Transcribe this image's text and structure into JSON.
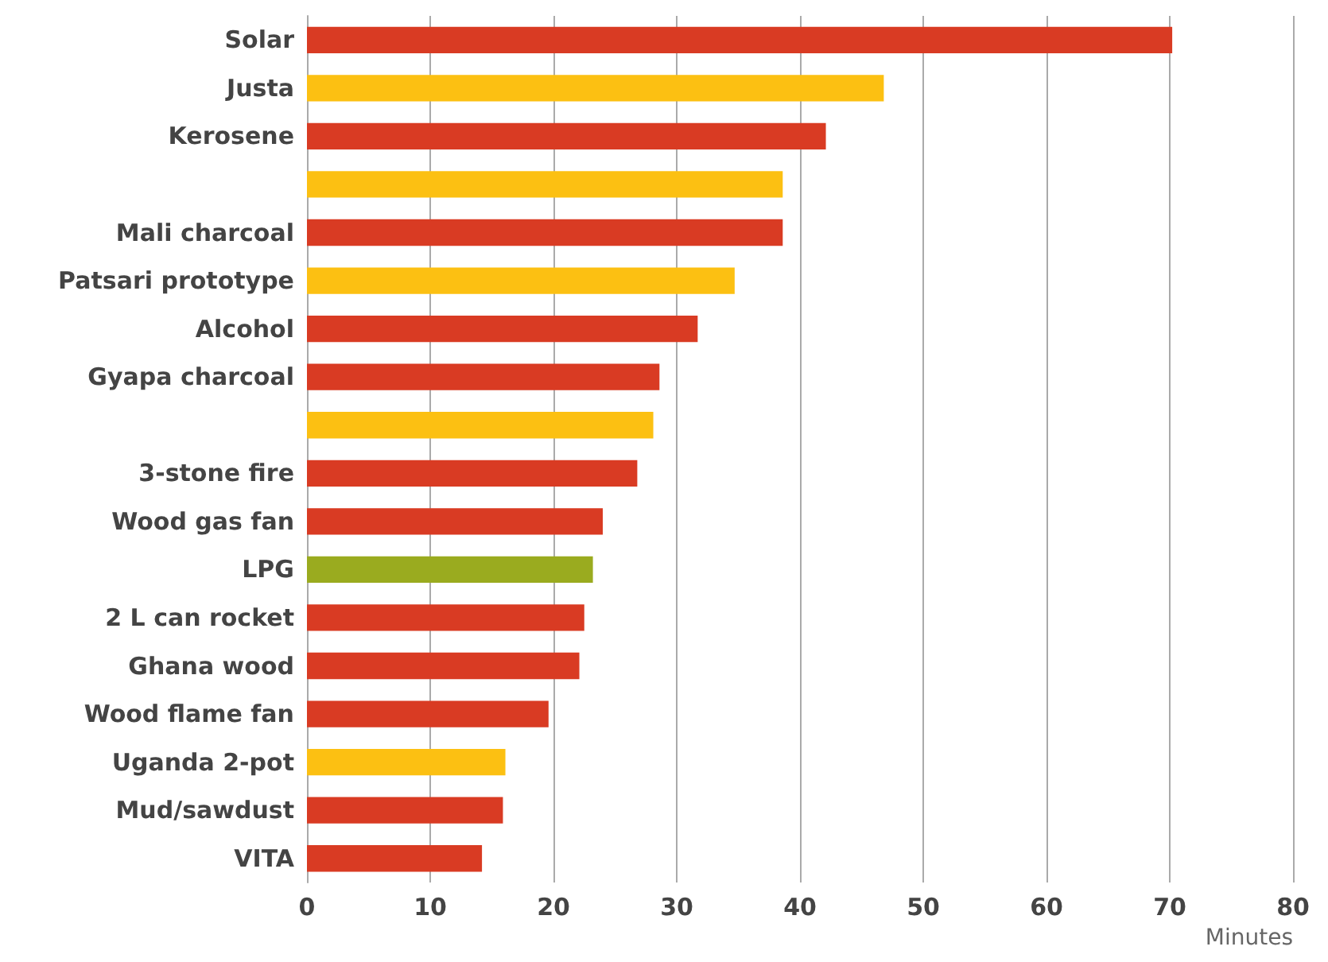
{
  "chart_data": {
    "type": "bar",
    "orientation": "horizontal",
    "xlabel": "Minutes",
    "categories": [
      "Solar",
      "Justa",
      "Kerosene",
      null,
      "Mali charcoal",
      "Patsari prototype",
      "Alcohol",
      "Gyapa charcoal",
      null,
      "3-stone fire",
      "Wood gas fan",
      "LPG",
      "2 L can rocket",
      "Ghana wood",
      "Wood flame fan",
      "Uganda 2-pot",
      "Mud/sawdust",
      "VITA"
    ],
    "values": [
      70.2,
      46.8,
      42.1,
      38.6,
      38.6,
      34.7,
      31.7,
      28.6,
      28.1,
      26.8,
      24.0,
      23.2,
      22.5,
      22.1,
      19.6,
      16.1,
      15.9,
      14.2
    ],
    "colors": [
      "#d93b23",
      "#fcc012",
      "#d93b23",
      "#fcc012",
      "#d93b23",
      "#fcc012",
      "#d93b23",
      "#d93b23",
      "#fcc012",
      "#d93b23",
      "#d93b23",
      "#9aab1f",
      "#d93b23",
      "#d93b23",
      "#d93b23",
      "#fcc012",
      "#d93b23",
      "#d93b23"
    ],
    "xlim": [
      0,
      80
    ],
    "xticks": [
      0,
      10,
      20,
      30,
      40,
      50,
      60,
      70,
      80
    ],
    "grid": "x"
  }
}
